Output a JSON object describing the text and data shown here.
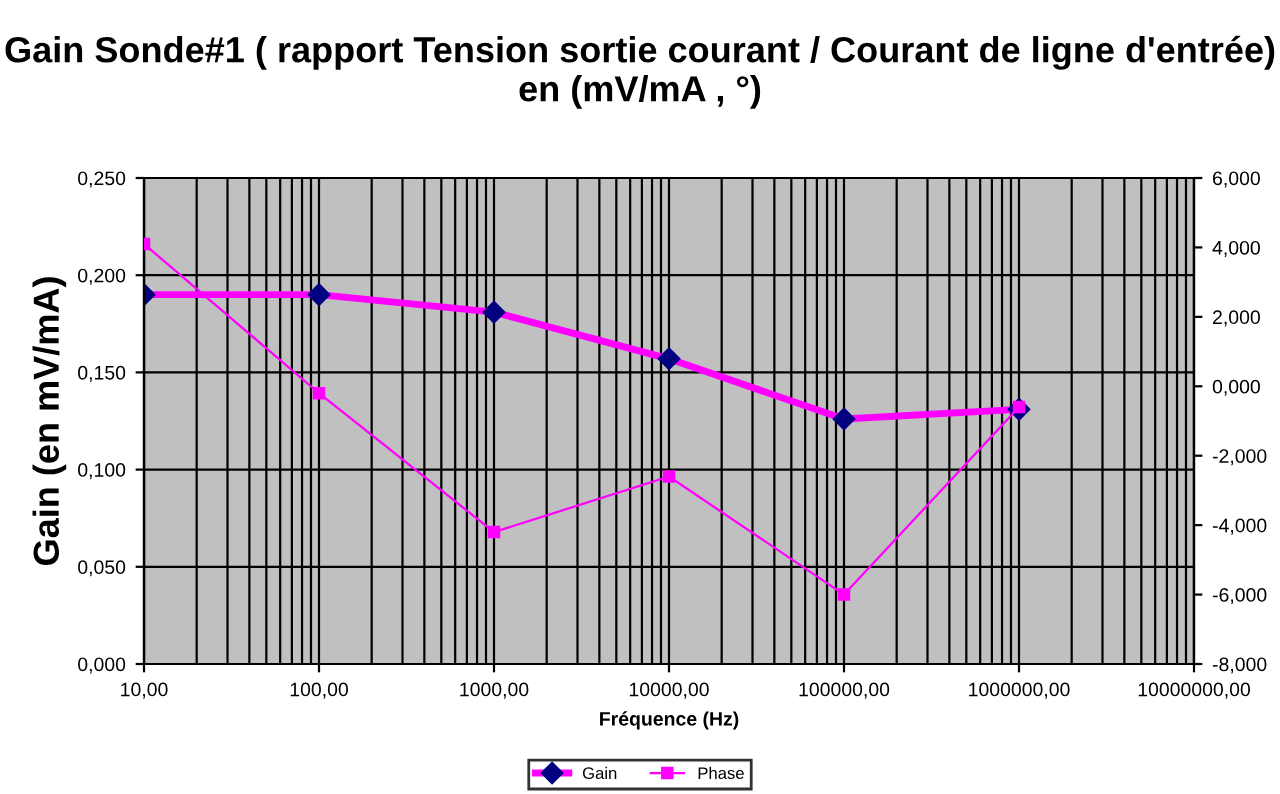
{
  "chart_data": {
    "type": "line",
    "title": "Gain Sonde#1 ( rapport Tension sortie courant / Courant de ligne d'entrée) en (mV/mA , °)",
    "xlabel": "Fréquence (Hz)",
    "ylabel": "Gain (en mV/mA)",
    "x": [
      10,
      100,
      1000,
      10000,
      100000,
      1000000
    ],
    "series": [
      {
        "name": "Gain",
        "color": "#ff00ff",
        "marker": "diamond",
        "values": [
          0.19,
          0.19,
          0.181,
          0.157,
          0.126,
          0.131
        ]
      },
      {
        "name": "Phase",
        "color": "#ff00ff",
        "marker": "square",
        "axis": "y2",
        "values": [
          4.1,
          -0.2,
          -4.2,
          -2.6,
          -6.0,
          -0.6
        ]
      }
    ],
    "log": "x",
    "xlim": [
      10,
      10000000
    ],
    "xticks": [
      {
        "value": 10,
        "label": "10,00"
      },
      {
        "value": 100,
        "label": "100,00"
      },
      {
        "value": 1000,
        "label": "1000,00"
      },
      {
        "value": 10000,
        "label": "10000,00"
      },
      {
        "value": 100000,
        "label": "100000,00"
      },
      {
        "value": 1000000,
        "label": "1000000,00"
      },
      {
        "value": 10000000,
        "label": "10000000,00"
      }
    ],
    "ylim": [
      0,
      0.25
    ],
    "yticks": [
      {
        "value": 0,
        "label": "0,000"
      },
      {
        "value": 0.05,
        "label": "0,050"
      },
      {
        "value": 0.1,
        "label": "0,100"
      },
      {
        "value": 0.15,
        "label": "0,150"
      },
      {
        "value": 0.2,
        "label": "0,200"
      },
      {
        "value": 0.25,
        "label": "0,250"
      }
    ],
    "y2lim": [
      -8,
      6
    ],
    "y2ticks": [
      {
        "value": -8,
        "label": "-8,000"
      },
      {
        "value": -6,
        "label": "-6,000"
      },
      {
        "value": -4,
        "label": "-4,000"
      },
      {
        "value": -2,
        "label": "-2,000"
      },
      {
        "value": 0,
        "label": "0,000"
      },
      {
        "value": 2,
        "label": "2,000"
      },
      {
        "value": 4,
        "label": "4,000"
      },
      {
        "value": 6,
        "label": "6,000"
      }
    ],
    "grid": true,
    "legend": "bottom"
  }
}
